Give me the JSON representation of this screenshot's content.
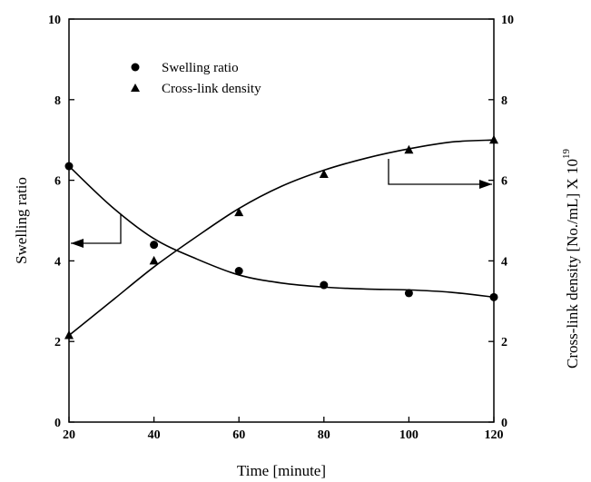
{
  "chart_data": {
    "type": "scatter",
    "xlabel": "Time [minute]",
    "ylabel_left": "Swelling ratio",
    "ylabel_right_base": "Cross-link density [No./mL] X 10",
    "ylabel_right_exponent": "19",
    "xlim": [
      20,
      120
    ],
    "ylim_left": [
      0,
      10
    ],
    "ylim_right": [
      0,
      10
    ],
    "x_ticks": [
      "20",
      "40",
      "60",
      "80",
      "100",
      "120"
    ],
    "y_ticks_left": [
      "0",
      "2",
      "4",
      "6",
      "8",
      "10"
    ],
    "y_ticks_right": [
      "0",
      "2",
      "4",
      "6",
      "8",
      "10"
    ],
    "grid": false,
    "legend_position": "top-left",
    "series": [
      {
        "name": "Swelling ratio",
        "marker": "circle",
        "axis": "left",
        "x": [
          20,
          40,
          60,
          80,
          100,
          120
        ],
        "y": [
          6.35,
          4.4,
          3.75,
          3.4,
          3.2,
          3.1
        ],
        "fit": {
          "x": [
            20,
            30,
            40,
            50,
            60,
            70,
            80,
            90,
            100,
            110,
            120
          ],
          "y": [
            6.35,
            5.35,
            4.55,
            4.05,
            3.65,
            3.45,
            3.35,
            3.3,
            3.28,
            3.22,
            3.1
          ]
        }
      },
      {
        "name": "Cross-link density",
        "marker": "triangle",
        "axis": "right",
        "x": [
          20,
          40,
          60,
          80,
          100,
          120
        ],
        "y": [
          2.15,
          4.0,
          5.2,
          6.15,
          6.75,
          7.0
        ],
        "fit": {
          "x": [
            20,
            30,
            40,
            50,
            60,
            70,
            80,
            90,
            100,
            110,
            120
          ],
          "y": [
            2.15,
            3.0,
            3.85,
            4.6,
            5.3,
            5.85,
            6.25,
            6.55,
            6.78,
            6.95,
            7.0
          ]
        }
      }
    ],
    "annotations": [
      {
        "type": "arrow",
        "direction": "left",
        "points_to": "left axis"
      },
      {
        "type": "arrow",
        "direction": "right",
        "points_to": "right axis"
      }
    ]
  }
}
